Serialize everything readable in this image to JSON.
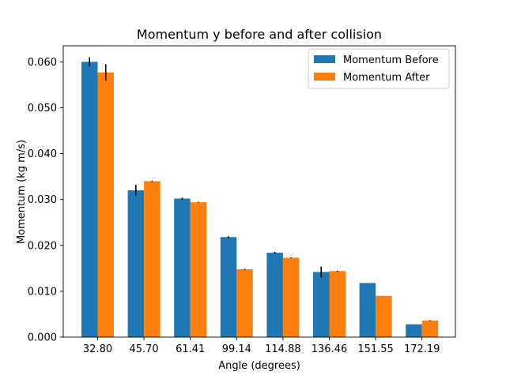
{
  "chart_data": {
    "type": "bar",
    "title": "Momentum y before and after collision",
    "xlabel": "Angle (degrees)",
    "ylabel": "Momentum (kg m/s)",
    "categories": [
      "32.80",
      "45.70",
      "61.41",
      "99.14",
      "114.88",
      "136.46",
      "151.55",
      "172.19"
    ],
    "series": [
      {
        "name": "Momentum Before",
        "color": "#1f77b4",
        "values": [
          0.06,
          0.032,
          0.0302,
          0.0218,
          0.0184,
          0.0142,
          0.0118,
          0.0028
        ],
        "errors": [
          0.001,
          0.0012,
          0.0002,
          0.0002,
          0.0002,
          0.0012,
          0.0,
          0.0
        ]
      },
      {
        "name": "Momentum After",
        "color": "#ff7f0e",
        "values": [
          0.0577,
          0.034,
          0.0294,
          0.0148,
          0.0173,
          0.0144,
          0.009,
          0.0036
        ],
        "errors": [
          0.0018,
          0.0001,
          0.0001,
          0.0001,
          0.0001,
          0.0001,
          0.0,
          0.0001
        ]
      }
    ],
    "yticks": [
      "0.000",
      "0.010",
      "0.020",
      "0.030",
      "0.040",
      "0.050",
      "0.060"
    ],
    "ylim": [
      0,
      0.0635
    ],
    "grid": false,
    "legend_position": "top-right"
  }
}
